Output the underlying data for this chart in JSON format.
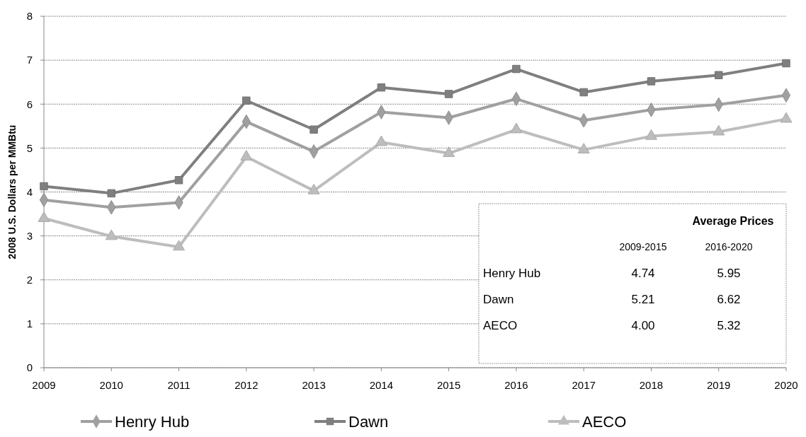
{
  "chart_data": {
    "type": "line",
    "ylabel": "2008 U.S. Dollars per MMBtu",
    "categories": [
      "2009",
      "2010",
      "2011",
      "2012",
      "2013",
      "2014",
      "2015",
      "2016",
      "2017",
      "2018",
      "2019",
      "2020"
    ],
    "series": [
      {
        "name": "Henry Hub",
        "color": "#a0a0a0",
        "marker": "diamond",
        "values": [
          3.82,
          3.65,
          3.76,
          5.6,
          4.92,
          5.82,
          5.69,
          6.12,
          5.63,
          5.87,
          5.99,
          6.2
        ]
      },
      {
        "name": "Dawn",
        "color": "#7f7f7f",
        "marker": "square",
        "values": [
          4.13,
          3.97,
          4.27,
          6.08,
          5.42,
          6.38,
          6.23,
          6.8,
          6.27,
          6.52,
          6.66,
          6.93
        ]
      },
      {
        "name": "AECO",
        "color": "#bdbdbd",
        "marker": "triangle",
        "values": [
          3.4,
          2.99,
          2.75,
          4.8,
          4.03,
          5.13,
          4.88,
          5.42,
          4.96,
          5.27,
          5.37,
          5.66
        ]
      }
    ],
    "ylim": [
      0,
      8
    ],
    "yticks": [
      0,
      1,
      2,
      3,
      4,
      5,
      6,
      7,
      8
    ],
    "grid": "y",
    "legend": "bottom",
    "annotations": [
      "Average Prices",
      "2009-2015",
      "2016-2020",
      "Henry Hub",
      "4.74",
      "5.95",
      "Dawn",
      "5.21",
      "6.62",
      "AECO",
      "4.00",
      "5.32"
    ]
  }
}
